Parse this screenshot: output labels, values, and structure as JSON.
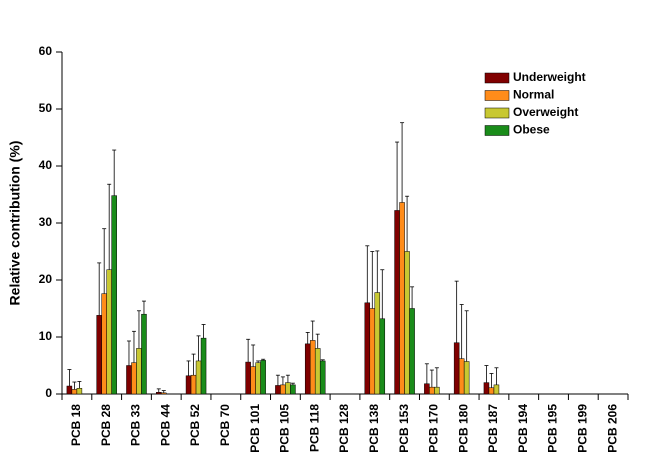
{
  "chart_data": {
    "type": "bar",
    "y_label": "Relative contribution (%)",
    "categories": [
      "PCB 18",
      "PCB 28",
      "PCB 33",
      "PCB 44",
      "PCB 52",
      "PCB 70",
      "PCB 101",
      "PCB 105",
      "PCB 118",
      "PCB 128",
      "PCB 138",
      "PCB 153",
      "PCB 170",
      "PCB 180",
      "PCB 187",
      "PCB 194",
      "PCB 195",
      "PCB 199",
      "PCB 206"
    ],
    "series": [
      {
        "name": "Underweight",
        "color": "#800000",
        "values": [
          1.4,
          13.8,
          5,
          0.3,
          3.2,
          0,
          5.6,
          1.5,
          8.8,
          0,
          16,
          32.2,
          1.8,
          9,
          2,
          0,
          0,
          0,
          0
        ],
        "errors": [
          2.9,
          9.2,
          4.3,
          0.6,
          2.6,
          0,
          4,
          1.8,
          2,
          0,
          10,
          12,
          3.5,
          10.8,
          3,
          0,
          0,
          0,
          0
        ]
      },
      {
        "name": "Normal",
        "color": "#ff8c1a",
        "values": [
          0.8,
          17.6,
          5.5,
          0.2,
          3.3,
          0,
          4.8,
          1.6,
          9.4,
          0,
          15,
          33.6,
          1.2,
          6.2,
          1.1,
          0,
          0,
          0,
          0
        ],
        "errors": [
          1.3,
          11.4,
          5.5,
          0.4,
          3.7,
          0,
          3.8,
          1.4,
          3.4,
          0,
          10,
          14,
          3,
          9.5,
          2.5,
          0,
          0,
          0,
          0
        ]
      },
      {
        "name": "Overweight",
        "color": "#c8c832",
        "values": [
          1,
          21.8,
          8,
          0,
          5.8,
          0,
          5.5,
          2,
          8,
          0,
          17.8,
          25,
          1.2,
          5.7,
          1.6,
          0,
          0,
          0,
          0
        ],
        "errors": [
          1.2,
          15,
          6.6,
          0,
          4.4,
          0,
          0.3,
          1.3,
          2.5,
          0,
          7.3,
          9.7,
          3.4,
          8.9,
          3,
          0,
          0,
          0,
          0
        ]
      },
      {
        "name": "Obese",
        "color": "#1a8c1a",
        "values": [
          0,
          34.8,
          14,
          0,
          9.8,
          0,
          5.9,
          1.6,
          5.8,
          0,
          13.2,
          15,
          0,
          0,
          0,
          0,
          0,
          0,
          0
        ],
        "errors": [
          0,
          8,
          2.3,
          0,
          2.4,
          0,
          0.2,
          0.3,
          0.2,
          0,
          8.6,
          3.8,
          0,
          0,
          0,
          0,
          0,
          0,
          0
        ]
      }
    ],
    "ylim": [
      0,
      60
    ],
    "yticks": [
      0,
      10,
      20,
      30,
      40,
      50,
      60
    ],
    "legend": "upper right"
  }
}
